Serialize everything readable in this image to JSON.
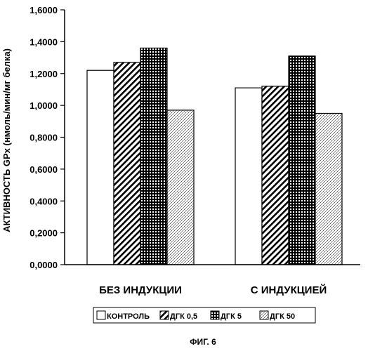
{
  "chart_data": {
    "type": "bar",
    "categories": [
      "БЕЗ ИНДУКЦИИ",
      "С ИНДУКЦИЕЙ"
    ],
    "series": [
      {
        "name": "КОНТРОЛЬ",
        "values": [
          1.22,
          1.11
        ],
        "pattern": "white"
      },
      {
        "name": "ДГК 0,5",
        "values": [
          1.27,
          1.12
        ],
        "pattern": "diagonal"
      },
      {
        "name": "ДГК 5",
        "values": [
          1.36,
          1.31
        ],
        "pattern": "grid"
      },
      {
        "name": "ДГК 50",
        "values": [
          0.97,
          0.95
        ],
        "pattern": "dots"
      }
    ],
    "ylabel": "АКТИВНОСТЬ GPx (нмоль/мин/мг белка)",
    "xlabel": "",
    "ylim": [
      0,
      1.6
    ],
    "yticks": [
      0,
      0.2,
      0.4,
      0.6,
      0.8,
      1.0,
      1.2,
      1.4,
      1.6
    ],
    "ytick_labels": [
      "0,0000",
      "0,2000",
      "0,4000",
      "0,6000",
      "0,8000",
      "1,0000",
      "1,2000",
      "1,4000",
      "1,6000"
    ],
    "grid": false,
    "legend_position": "bottom"
  },
  "caption": "ФИГ. 6",
  "colors": {
    "line": "#000000",
    "background": "#ffffff"
  }
}
